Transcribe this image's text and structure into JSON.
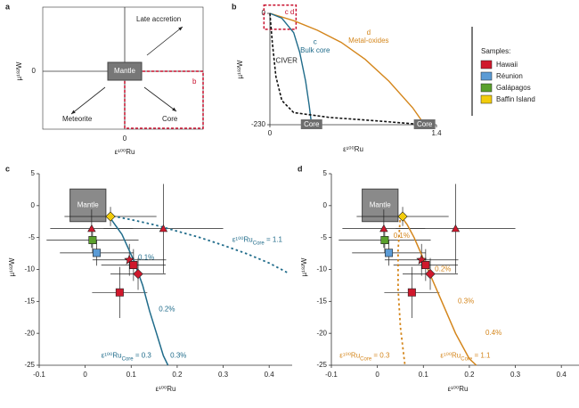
{
  "chart_data": [
    {
      "type": "schematic",
      "panel": "a",
      "xlabel": "ε¹⁰⁰Ru",
      "ylabel": "µ¹⁸²W",
      "xticks": [
        0
      ],
      "yticks": [
        0
      ],
      "box_label": "Mantle",
      "arrows": [
        "Late accretion",
        "Meteorite",
        "Core"
      ],
      "zoom_label": "b"
    },
    {
      "type": "line",
      "panel": "b",
      "xlabel": "ε¹⁰⁰Ru",
      "ylabel": "µ¹⁸²W",
      "xlim": [
        0,
        1.4
      ],
      "ylim": [
        -230,
        0
      ],
      "xticks": [
        0,
        1.4
      ],
      "yticks": [
        0,
        -230
      ],
      "series": [
        {
          "name": "Metal-oxides",
          "tag": "d",
          "color": "#d4861c",
          "dash": false,
          "x": [
            0,
            0.2,
            0.4,
            0.6,
            0.8,
            1.0,
            1.2,
            1.3
          ],
          "values": [
            0,
            -15,
            -35,
            -60,
            -95,
            -140,
            -195,
            -230
          ]
        },
        {
          "name": "Bulk core",
          "tag": "c",
          "color": "#1f6b8a",
          "dash": false,
          "x": [
            0,
            0.1,
            0.2,
            0.25,
            0.3,
            0.33,
            0.35
          ],
          "values": [
            0,
            -10,
            -40,
            -80,
            -140,
            -190,
            -230
          ]
        },
        {
          "name": "CIVER",
          "color": "#111111",
          "dash": true,
          "x": [
            0,
            0.02,
            0.05,
            0.1,
            0.2,
            0.5,
            0.9,
            1.3
          ],
          "values": [
            0,
            -60,
            -130,
            -180,
            -205,
            -215,
            -222,
            -230
          ]
        }
      ],
      "core_boxes": [
        {
          "text": "Core",
          "x": 0.35,
          "y": -230
        },
        {
          "text": "Core",
          "x": 1.3,
          "y": -230
        }
      ],
      "zoom_box": {
        "text": "c d",
        "x": [
          -0.05,
          0.22
        ],
        "y": [
          17,
          -33
        ]
      }
    },
    {
      "type": "scatter",
      "panel": "c",
      "xlabel": "ε¹⁰⁰Ru",
      "ylabel": "µ¹⁸²W",
      "xlim": [
        -0.1,
        0.45
      ],
      "ylim": [
        -25,
        5
      ],
      "xticks": [
        -0.1,
        0,
        0.1,
        0.2,
        0.3,
        0.4
      ],
      "yticks": [
        5,
        0,
        -5,
        -10,
        -15,
        -20,
        -25
      ],
      "mantle": {
        "label": "Mantle",
        "x": [
          -0.033,
          0.045
        ],
        "y": [
          -2.5,
          2.6
        ]
      },
      "curves": [
        {
          "color": "#1f6b8a",
          "dash": false,
          "x": [
            0.05,
            0.08,
            0.105,
            0.125,
            0.14,
            0.155,
            0.17,
            0.18
          ],
          "values": [
            -1.5,
            -4.5,
            -8.5,
            -12.5,
            -16.5,
            -20,
            -23.5,
            -25
          ]
        },
        {
          "color": "#1f6b8a",
          "dash": true,
          "x": [
            0.05,
            0.1,
            0.15,
            0.2,
            0.25,
            0.3,
            0.35,
            0.4,
            0.44
          ],
          "values": [
            -1.5,
            -2.2,
            -3,
            -4,
            -5,
            -6.2,
            -7.5,
            -9,
            -10.5
          ]
        }
      ],
      "annotations": [
        {
          "parts": [
            "0.1%"
          ],
          "x": 0.115,
          "y": -8.2,
          "color": "#1f6b8a"
        },
        {
          "parts": [
            "0.2%"
          ],
          "x": 0.16,
          "y": -16.3,
          "color": "#1f6b8a"
        },
        {
          "parts": [
            "0.3%"
          ],
          "x": 0.185,
          "y": -23.5,
          "color": "#1f6b8a"
        },
        {
          "parts": [
            "ε¹⁰⁰Ru",
            "Core",
            " = 1.1"
          ],
          "x": 0.32,
          "y": -5.4,
          "color": "#1f6b8a"
        },
        {
          "parts": [
            "ε¹⁰⁰Ru",
            "Core",
            " = 0.3"
          ],
          "x": 0.035,
          "y": -23.5,
          "color": "#1f6b8a"
        }
      ]
    },
    {
      "type": "scatter",
      "panel": "d",
      "xlabel": "ε¹⁰⁰Ru",
      "ylabel": "µ¹⁸²W",
      "xlim": [
        -0.1,
        0.45
      ],
      "ylim": [
        -25,
        5
      ],
      "xticks": [
        -0.1,
        0,
        0.1,
        0.2,
        0.3,
        0.4
      ],
      "yticks": [
        5,
        0,
        -5,
        -10,
        -15,
        -20,
        -25
      ],
      "mantle": {
        "label": "Mantle",
        "x": [
          -0.033,
          0.045
        ],
        "y": [
          -2.5,
          2.6
        ]
      },
      "curves": [
        {
          "color": "#d4861c",
          "dash": false,
          "x": [
            0.05,
            0.065,
            0.08,
            0.095,
            0.11,
            0.14,
            0.17,
            0.2,
            0.215
          ],
          "values": [
            -1.5,
            -3,
            -5,
            -7.5,
            -10,
            -15,
            -20,
            -24,
            -25
          ]
        },
        {
          "color": "#d4861c",
          "dash": true,
          "x": [
            0.05,
            0.045,
            0.045,
            0.05,
            0.06
          ],
          "values": [
            -1.5,
            -7,
            -13,
            -19,
            -25
          ]
        }
      ],
      "annotations": [
        {
          "parts": [
            "0.1%"
          ],
          "x": 0.035,
          "y": -4.8,
          "color": "#d4861c"
        },
        {
          "parts": [
            "0.2%"
          ],
          "x": 0.125,
          "y": -10,
          "color": "#d4861c"
        },
        {
          "parts": [
            "0.3%"
          ],
          "x": 0.175,
          "y": -15,
          "color": "#d4861c"
        },
        {
          "parts": [
            "0.4%"
          ],
          "x": 0.235,
          "y": -20,
          "color": "#d4861c"
        },
        {
          "parts": [
            "ε¹⁰⁰Ru",
            "Core",
            " = 0.3"
          ],
          "x": -0.082,
          "y": -23.5,
          "color": "#d4861c"
        },
        {
          "parts": [
            "ε¹⁰⁰Ru",
            "Core",
            " = 1.1"
          ],
          "x": 0.137,
          "y": -23.5,
          "color": "#d4861c"
        }
      ]
    }
  ],
  "samples": {
    "title": "Samples:",
    "series": [
      {
        "name": "Hawaii",
        "color": "#d0182c",
        "markers": [
          "triangle",
          "triangle",
          "star",
          "square",
          "diamond",
          "square"
        ],
        "x": [
          0.014,
          0.17,
          0.096,
          0.105,
          0.115,
          0.075
        ],
        "values": [
          -3.6,
          -3.6,
          -8.5,
          -9.3,
          -10.7,
          -13.6
        ],
        "xerr": [
          0.09,
          0.13,
          0.08,
          0.07,
          0.06,
          0.06
        ],
        "yerr": [
          3,
          7,
          2.5,
          2.5,
          2.5,
          4
        ]
      },
      {
        "name": "Réunion",
        "color": "#5b9bd5",
        "markers": [
          "square"
        ],
        "x": [
          0.025
        ],
        "values": [
          -7.4
        ],
        "xerr": [
          0.08
        ],
        "yerr": [
          2
        ]
      },
      {
        "name": "Galápagos",
        "color": "#5aa02c",
        "markers": [
          "square"
        ],
        "x": [
          0.016
        ],
        "values": [
          -5.4
        ],
        "xerr": [
          0.1
        ],
        "yerr": [
          2
        ]
      },
      {
        "name": "Baffin Island",
        "color": "#f2cc0c",
        "markers": [
          "diamond"
        ],
        "x": [
          0.055
        ],
        "values": [
          -1.7
        ],
        "xerr": [
          0.1
        ],
        "yerr": [
          1.5
        ]
      }
    ]
  }
}
